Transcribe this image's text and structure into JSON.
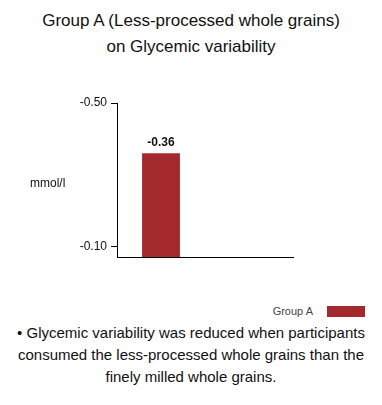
{
  "chart_data": {
    "type": "bar",
    "title": "Group A (Less-processed whole grains) on Glycemic variability",
    "y_label": "mmol/l",
    "categories": [
      null,
      null
    ],
    "series": [
      {
        "name": "Group A",
        "color": "#a3292d",
        "values": [
          -0.36,
          null
        ]
      }
    ],
    "ylim": [
      -0.5,
      -0.07
    ],
    "yticks": [
      {
        "value": -0.5,
        "label": "-0.50"
      },
      {
        "value": -0.1,
        "label": "-0.10"
      }
    ],
    "data_labels": true,
    "legend": "bottom right",
    "grid": false,
    "annotation": "• Glycemic variability was reduced when participants consumed the less-processed whole grains than the finely milled whole grains."
  }
}
